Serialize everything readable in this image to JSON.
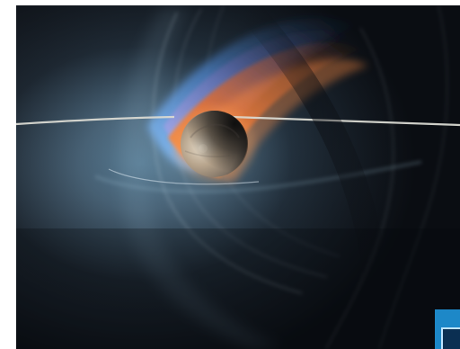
{
  "image": {
    "subject": "planet-with-plasma-trail",
    "colors": {
      "background": "#0b0f16",
      "background_glow": "#2c4e67",
      "planet": "#9a8a74",
      "trail_orange": "#e47a38",
      "trail_blue": "#4a86c6",
      "orbit_line": "#d9d9d2",
      "corner_logo": "#1d88c8"
    }
  },
  "corner_logo": {
    "text": ""
  }
}
